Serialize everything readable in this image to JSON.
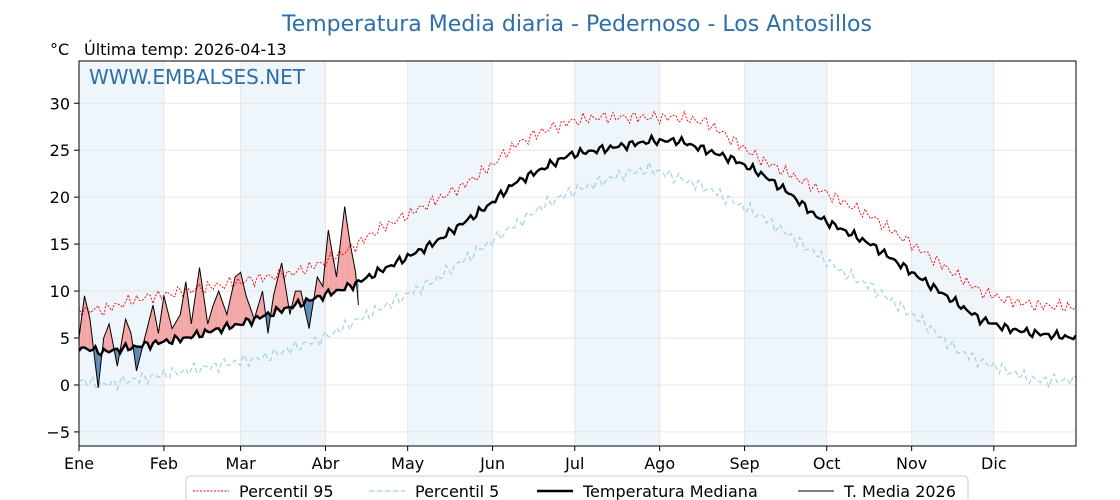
{
  "chart_data": {
    "type": "line",
    "title": "Temperatura Media diaria - Pedernoso - Los Antosillos",
    "ylabel": "°C",
    "subtitle": "Última temp: 2026-04-13",
    "watermark": "WWW.EMBALSES.NET",
    "ylim": [
      -6.5,
      34.5
    ],
    "yticks": [
      -5,
      0,
      5,
      10,
      15,
      20,
      25,
      30
    ],
    "ytick_labels": [
      "−5",
      "0",
      "5",
      "10",
      "15",
      "20",
      "25",
      "30"
    ],
    "months": [
      "Ene",
      "Feb",
      "Mar",
      "Abr",
      "May",
      "Jun",
      "Jul",
      "Ago",
      "Sep",
      "Oct",
      "Nov",
      "Dic"
    ],
    "month_start_days": [
      1,
      32,
      60,
      91,
      121,
      152,
      182,
      213,
      244,
      274,
      305,
      335
    ],
    "x_days_in_year": 365,
    "grid": true,
    "legend_position": "bottom",
    "colors": {
      "p95": "#ff0000",
      "p5": "#9fd3e4",
      "median": "#000000",
      "t2026": "#000000",
      "above_fill": "#f4a5a5",
      "below_fill": "#5b8bb3",
      "title": "#2e6fa7",
      "month_band": "#eef5fb"
    },
    "series": [
      {
        "name": "Percentil 95",
        "style": "dotted",
        "anchors_day": [
          1,
          10,
          20,
          30,
          40,
          50,
          60,
          70,
          80,
          90,
          100,
          110,
          120,
          130,
          140,
          150,
          160,
          170,
          180,
          190,
          200,
          210,
          220,
          230,
          240,
          250,
          260,
          270,
          280,
          290,
          300,
          310,
          320,
          330,
          340,
          350,
          365
        ],
        "anchors_value": [
          8,
          8,
          9,
          9.5,
          10,
          10.5,
          11,
          11.5,
          12,
          13,
          14.5,
          16.5,
          18,
          19.5,
          21,
          23,
          25.5,
          27,
          28,
          28.5,
          28.5,
          28.5,
          28.5,
          28,
          26,
          24,
          22.5,
          21,
          19.5,
          18,
          16,
          14,
          12,
          10,
          9,
          8.5,
          8.3
        ]
      },
      {
        "name": "Percentil 5",
        "style": "dashed",
        "anchors_day": [
          1,
          10,
          20,
          30,
          40,
          50,
          60,
          70,
          80,
          90,
          100,
          110,
          120,
          130,
          140,
          150,
          160,
          170,
          180,
          190,
          200,
          210,
          220,
          230,
          240,
          250,
          260,
          270,
          280,
          290,
          300,
          310,
          320,
          330,
          340,
          350,
          365
        ],
        "anchors_value": [
          0.5,
          0,
          0.5,
          1,
          1.5,
          2,
          2.5,
          3,
          4,
          5,
          6.5,
          8,
          9.5,
          11,
          13,
          15,
          17,
          19,
          20.5,
          21.5,
          22.5,
          23,
          22,
          21,
          19.5,
          18,
          16,
          14,
          12,
          10.5,
          8.5,
          6.5,
          4,
          2.5,
          1.5,
          0.5,
          0.5
        ]
      },
      {
        "name": "Temperatura Mediana",
        "style": "solid-thick",
        "anchors_day": [
          1,
          10,
          20,
          30,
          40,
          50,
          60,
          70,
          80,
          90,
          100,
          110,
          120,
          130,
          140,
          150,
          160,
          170,
          180,
          190,
          200,
          210,
          220,
          230,
          240,
          250,
          260,
          270,
          280,
          290,
          300,
          310,
          320,
          330,
          340,
          350,
          365
        ],
        "anchors_value": [
          4,
          3.5,
          4,
          4.5,
          5,
          5.8,
          6.5,
          7.5,
          8.5,
          9.5,
          10.5,
          12,
          13.5,
          15,
          17,
          19,
          21.5,
          23,
          24.5,
          25,
          25.5,
          26,
          26,
          25,
          24,
          22.5,
          20.5,
          18,
          16.5,
          15,
          13,
          11,
          9,
          7,
          6,
          5.5,
          5
        ]
      },
      {
        "name": "T. Media 2026",
        "style": "solid-thin",
        "anchors_day": [
          1,
          3,
          5,
          8,
          10,
          12,
          15,
          18,
          20,
          22,
          25,
          28,
          30,
          32,
          35,
          38,
          40,
          42,
          45,
          48,
          50,
          52,
          55,
          58,
          60,
          62,
          65,
          68,
          70,
          72,
          75,
          78,
          80,
          82,
          85,
          88,
          90,
          92,
          95,
          98,
          100,
          102,
          103
        ],
        "anchors_value": [
          5,
          9.5,
          7,
          -0.3,
          5,
          6.5,
          2,
          7,
          5.5,
          1.5,
          5,
          8.5,
          5.5,
          9.5,
          6,
          7.5,
          11,
          6.5,
          12.5,
          6.5,
          8.5,
          10,
          7.5,
          11.5,
          12,
          9.5,
          7,
          10,
          5.5,
          9.5,
          13,
          7.5,
          10,
          10,
          6,
          11.5,
          10.5,
          16.5,
          11.5,
          19,
          15,
          12,
          8.5
        ]
      }
    ]
  }
}
